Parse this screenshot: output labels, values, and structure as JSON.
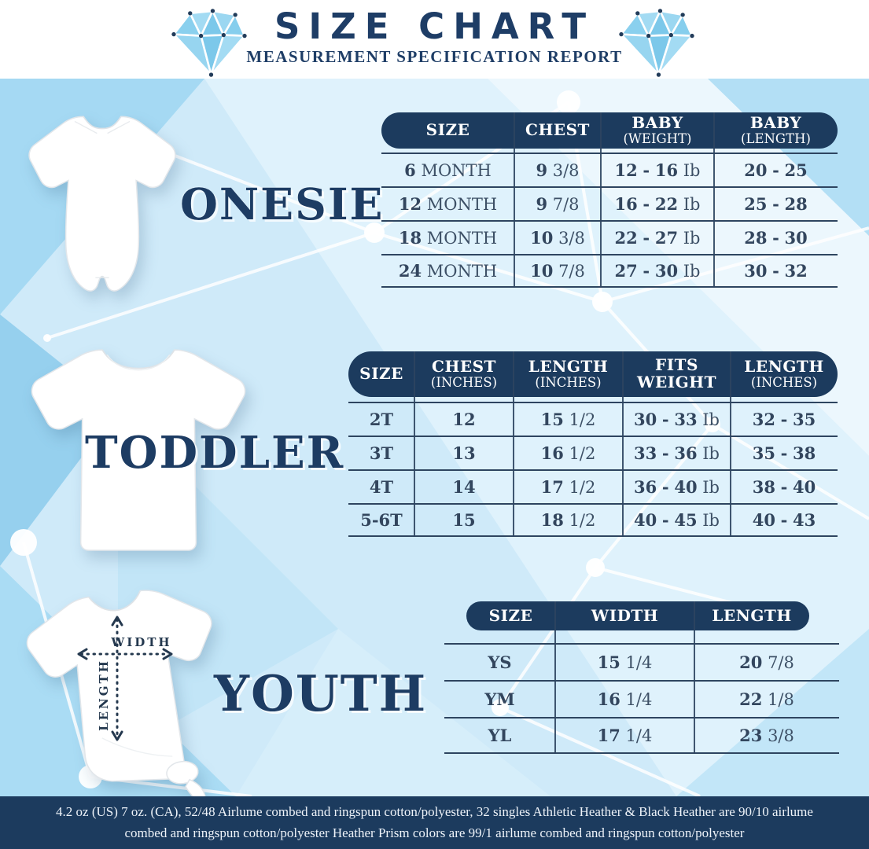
{
  "header": {
    "title": "SIZE CHART",
    "subtitle": "MEASUREMENT SPECIFICATION REPORT"
  },
  "sections": [
    {
      "id": "onesie",
      "label": "ONESIE",
      "garment": "baby-onesie",
      "table": {
        "columns": [
          {
            "title": "SIZE",
            "sub": ""
          },
          {
            "title": "CHEST",
            "sub": ""
          },
          {
            "title": "BABY",
            "sub": "(WEIGHT)"
          },
          {
            "title": "BABY",
            "sub": "(LENGTH)"
          }
        ],
        "rows": [
          [
            "6 MONTH",
            "9 3/8",
            "12 - 16 Ib",
            "20 - 25"
          ],
          [
            "12 MONTH",
            "9 7/8",
            "16 - 22 Ib",
            "25 - 28"
          ],
          [
            "18 MONTH",
            "10 3/8",
            "22 - 27 Ib",
            "28 - 30"
          ],
          [
            "24 MONTH",
            "10 7/8",
            "27 - 30 Ib",
            "30 - 32"
          ]
        ]
      }
    },
    {
      "id": "toddler",
      "label": "TODDLER",
      "garment": "toddler-tshirt",
      "table": {
        "columns": [
          {
            "title": "SIZE",
            "sub": ""
          },
          {
            "title": "CHEST",
            "sub": "(INCHES)"
          },
          {
            "title": "LENGTH",
            "sub": "(INCHES)"
          },
          {
            "title": "FITS",
            "sub": "WEIGHT"
          },
          {
            "title": "LENGTH",
            "sub": "(INCHES)"
          }
        ],
        "rows": [
          [
            "2T",
            "12",
            "15 1/2",
            "30 - 33 Ib",
            "32 - 35"
          ],
          [
            "3T",
            "13",
            "16 1/2",
            "33 - 36 Ib",
            "35 - 38"
          ],
          [
            "4T",
            "14",
            "17 1/2",
            "36 - 40 Ib",
            "38 - 40"
          ],
          [
            "5-6T",
            "15",
            "18 1/2",
            "40 - 45 Ib",
            "40 - 43"
          ]
        ]
      }
    },
    {
      "id": "youth",
      "label": "YOUTH",
      "garment": "youth-tshirt",
      "measure_labels": {
        "width": "WIDTH",
        "length": "LENGTH"
      },
      "table": {
        "columns": [
          {
            "title": "SIZE",
            "sub": ""
          },
          {
            "title": "WIDTH",
            "sub": ""
          },
          {
            "title": "LENGTH",
            "sub": ""
          }
        ],
        "rows": [
          [
            "YS",
            "15 1/4",
            "20 7/8"
          ],
          [
            "YM",
            "16 1/4",
            "22 1/8"
          ],
          [
            "YL",
            "17 1/4",
            "23 3/8"
          ]
        ]
      }
    }
  ],
  "footer": {
    "text": "4.2 oz (US) 7 oz. (CA), 52/48 Airlume combed and ringspun cotton/polyester, 32 singles Athletic Heather & Black Heather are 90/10 airlume combed and ringspun cotton/polyester Heather Prism colors are 99/1 airlume combed and ringspun cotton/polyester"
  },
  "colors": {
    "navy": "#1c3b5e",
    "table_line": "#2e4560",
    "body_text": "#3d5066",
    "diamond_blue": "#8ad0ee",
    "background_blue": "#cfeaf9"
  }
}
